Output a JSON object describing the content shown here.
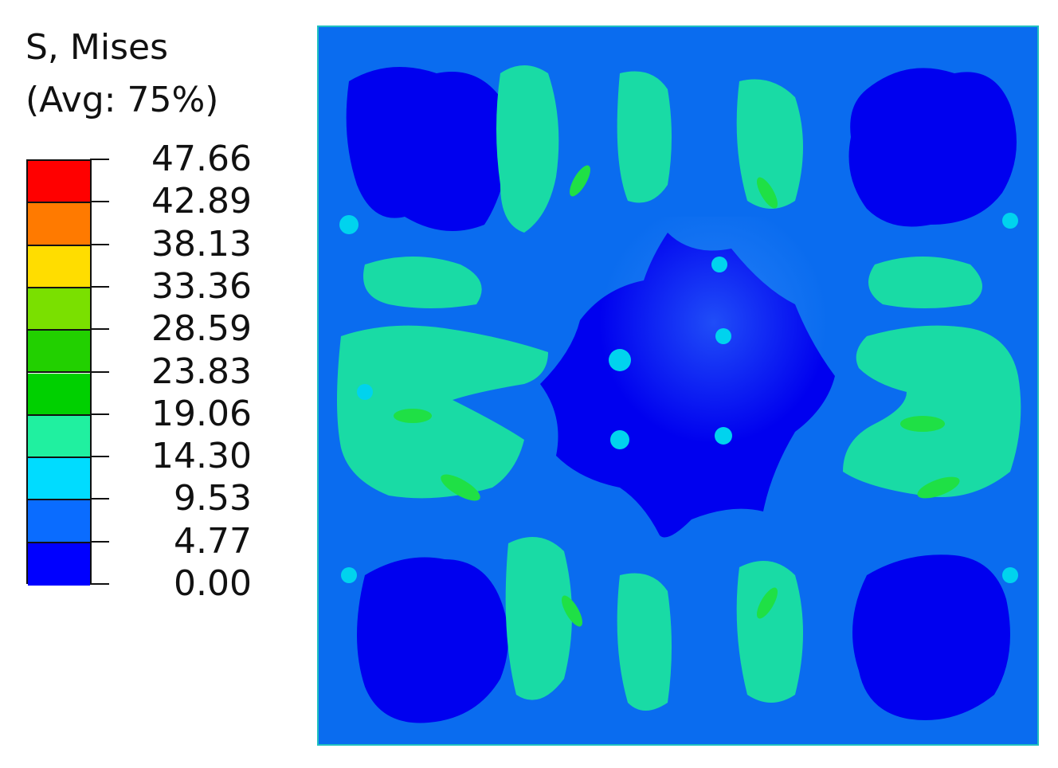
{
  "legend": {
    "title_line1": "S, Mises",
    "title_line2": "(Avg: 75%)",
    "levels": [
      "47.66",
      "42.89",
      "38.13",
      "33.36",
      "28.59",
      "23.83",
      "19.06",
      "14.30",
      "9.53",
      "4.77",
      "0.00"
    ],
    "band_colors": [
      "#ff0000",
      "#ff7a00",
      "#ffdd00",
      "#7ae000",
      "#22d000",
      "#00d000",
      "#20f0a0",
      "#00dcff",
      "#0a6cff",
      "#0000ff"
    ]
  },
  "contour_colors": {
    "band_0": "#0000ef",
    "band_1": "#0a6cef",
    "band_2": "#00d3ee",
    "band_3": "#19dba5",
    "band_4": "#1fe045",
    "edge": "#20c0c0"
  }
}
